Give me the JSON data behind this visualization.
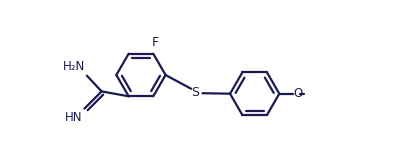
{
  "bg": "#ffffff",
  "lc": "#1a1a4e",
  "lw": 1.6,
  "fs": 8.5,
  "r": 0.5,
  "xlim": [
    0.0,
    8.2
  ],
  "ylim": [
    0.15,
    2.55
  ]
}
